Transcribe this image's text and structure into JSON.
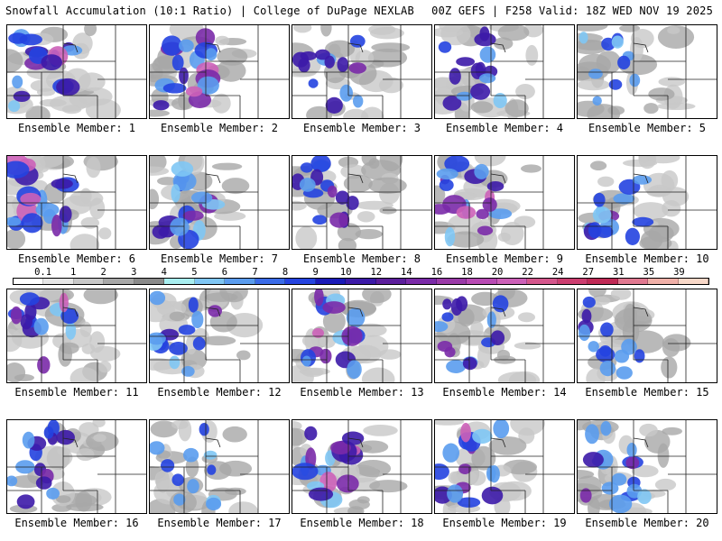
{
  "header": {
    "left_title": "Snowfall Accumulation (10:1 Ratio) | College of DuPage NEXLAB",
    "right_title": "00Z GEFS | F258 Valid: 18Z WED NOV 19 2025"
  },
  "legend": {
    "labels": [
      "0.1",
      "1",
      "2",
      "3",
      "4",
      "5",
      "6",
      "7",
      "8",
      "9",
      "10",
      "12",
      "14",
      "16",
      "18",
      "20",
      "22",
      "24",
      "27",
      "31",
      "35",
      "39"
    ],
    "colors": [
      "#ffffff",
      "#e6e6e6",
      "#c8c8c8",
      "#a8a8a8",
      "#8a8a8a",
      "#a8eef0",
      "#7fc6f4",
      "#5a9cee",
      "#3a6be8",
      "#2443e0",
      "#1a1ab8",
      "#3c1aa8",
      "#5c1e9c",
      "#7a2aa8",
      "#9a3aa8",
      "#b84ab4",
      "#cc60b8",
      "#d4568c",
      "#cc3e70",
      "#c02a56",
      "#e07890",
      "#f0b0a8",
      "#f8d8c8"
    ]
  },
  "members": [
    {
      "label": "Ensemble Member: 1",
      "intensity": 0.7
    },
    {
      "label": "Ensemble Member: 2",
      "intensity": 0.8
    },
    {
      "label": "Ensemble Member: 3",
      "intensity": 0.5
    },
    {
      "label": "Ensemble Member: 4",
      "intensity": 0.6
    },
    {
      "label": "Ensemble Member: 5",
      "intensity": 0.3
    },
    {
      "label": "Ensemble Member: 6",
      "intensity": 0.85
    },
    {
      "label": "Ensemble Member: 7",
      "intensity": 0.7
    },
    {
      "label": "Ensemble Member: 8",
      "intensity": 0.55
    },
    {
      "label": "Ensemble Member: 9",
      "intensity": 0.75
    },
    {
      "label": "Ensemble Member: 10",
      "intensity": 0.6
    },
    {
      "label": "Ensemble Member: 11",
      "intensity": 0.65
    },
    {
      "label": "Ensemble Member: 12",
      "intensity": 0.55
    },
    {
      "label": "Ensemble Member: 13",
      "intensity": 0.7
    },
    {
      "label": "Ensemble Member: 14",
      "intensity": 0.55
    },
    {
      "label": "Ensemble Member: 15",
      "intensity": 0.5
    },
    {
      "label": "Ensemble Member: 16",
      "intensity": 0.55
    },
    {
      "label": "Ensemble Member: 17",
      "intensity": 0.35
    },
    {
      "label": "Ensemble Member: 18",
      "intensity": 0.8
    },
    {
      "label": "Ensemble Member: 19",
      "intensity": 0.7
    },
    {
      "label": "Ensemble Member: 20",
      "intensity": 0.7
    }
  ]
}
